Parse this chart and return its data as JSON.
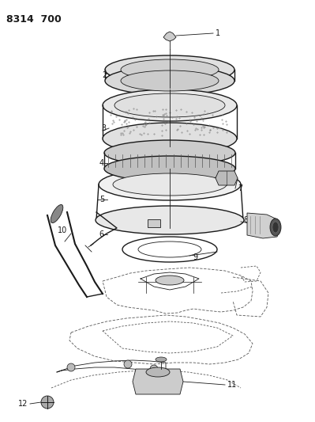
{
  "title": "8314  700",
  "bg_color": "#ffffff",
  "line_color": "#1a1a1a",
  "gray_line": "#666666",
  "dash_line": "#555555",
  "figsize": [
    3.99,
    5.33
  ],
  "dpi": 100
}
